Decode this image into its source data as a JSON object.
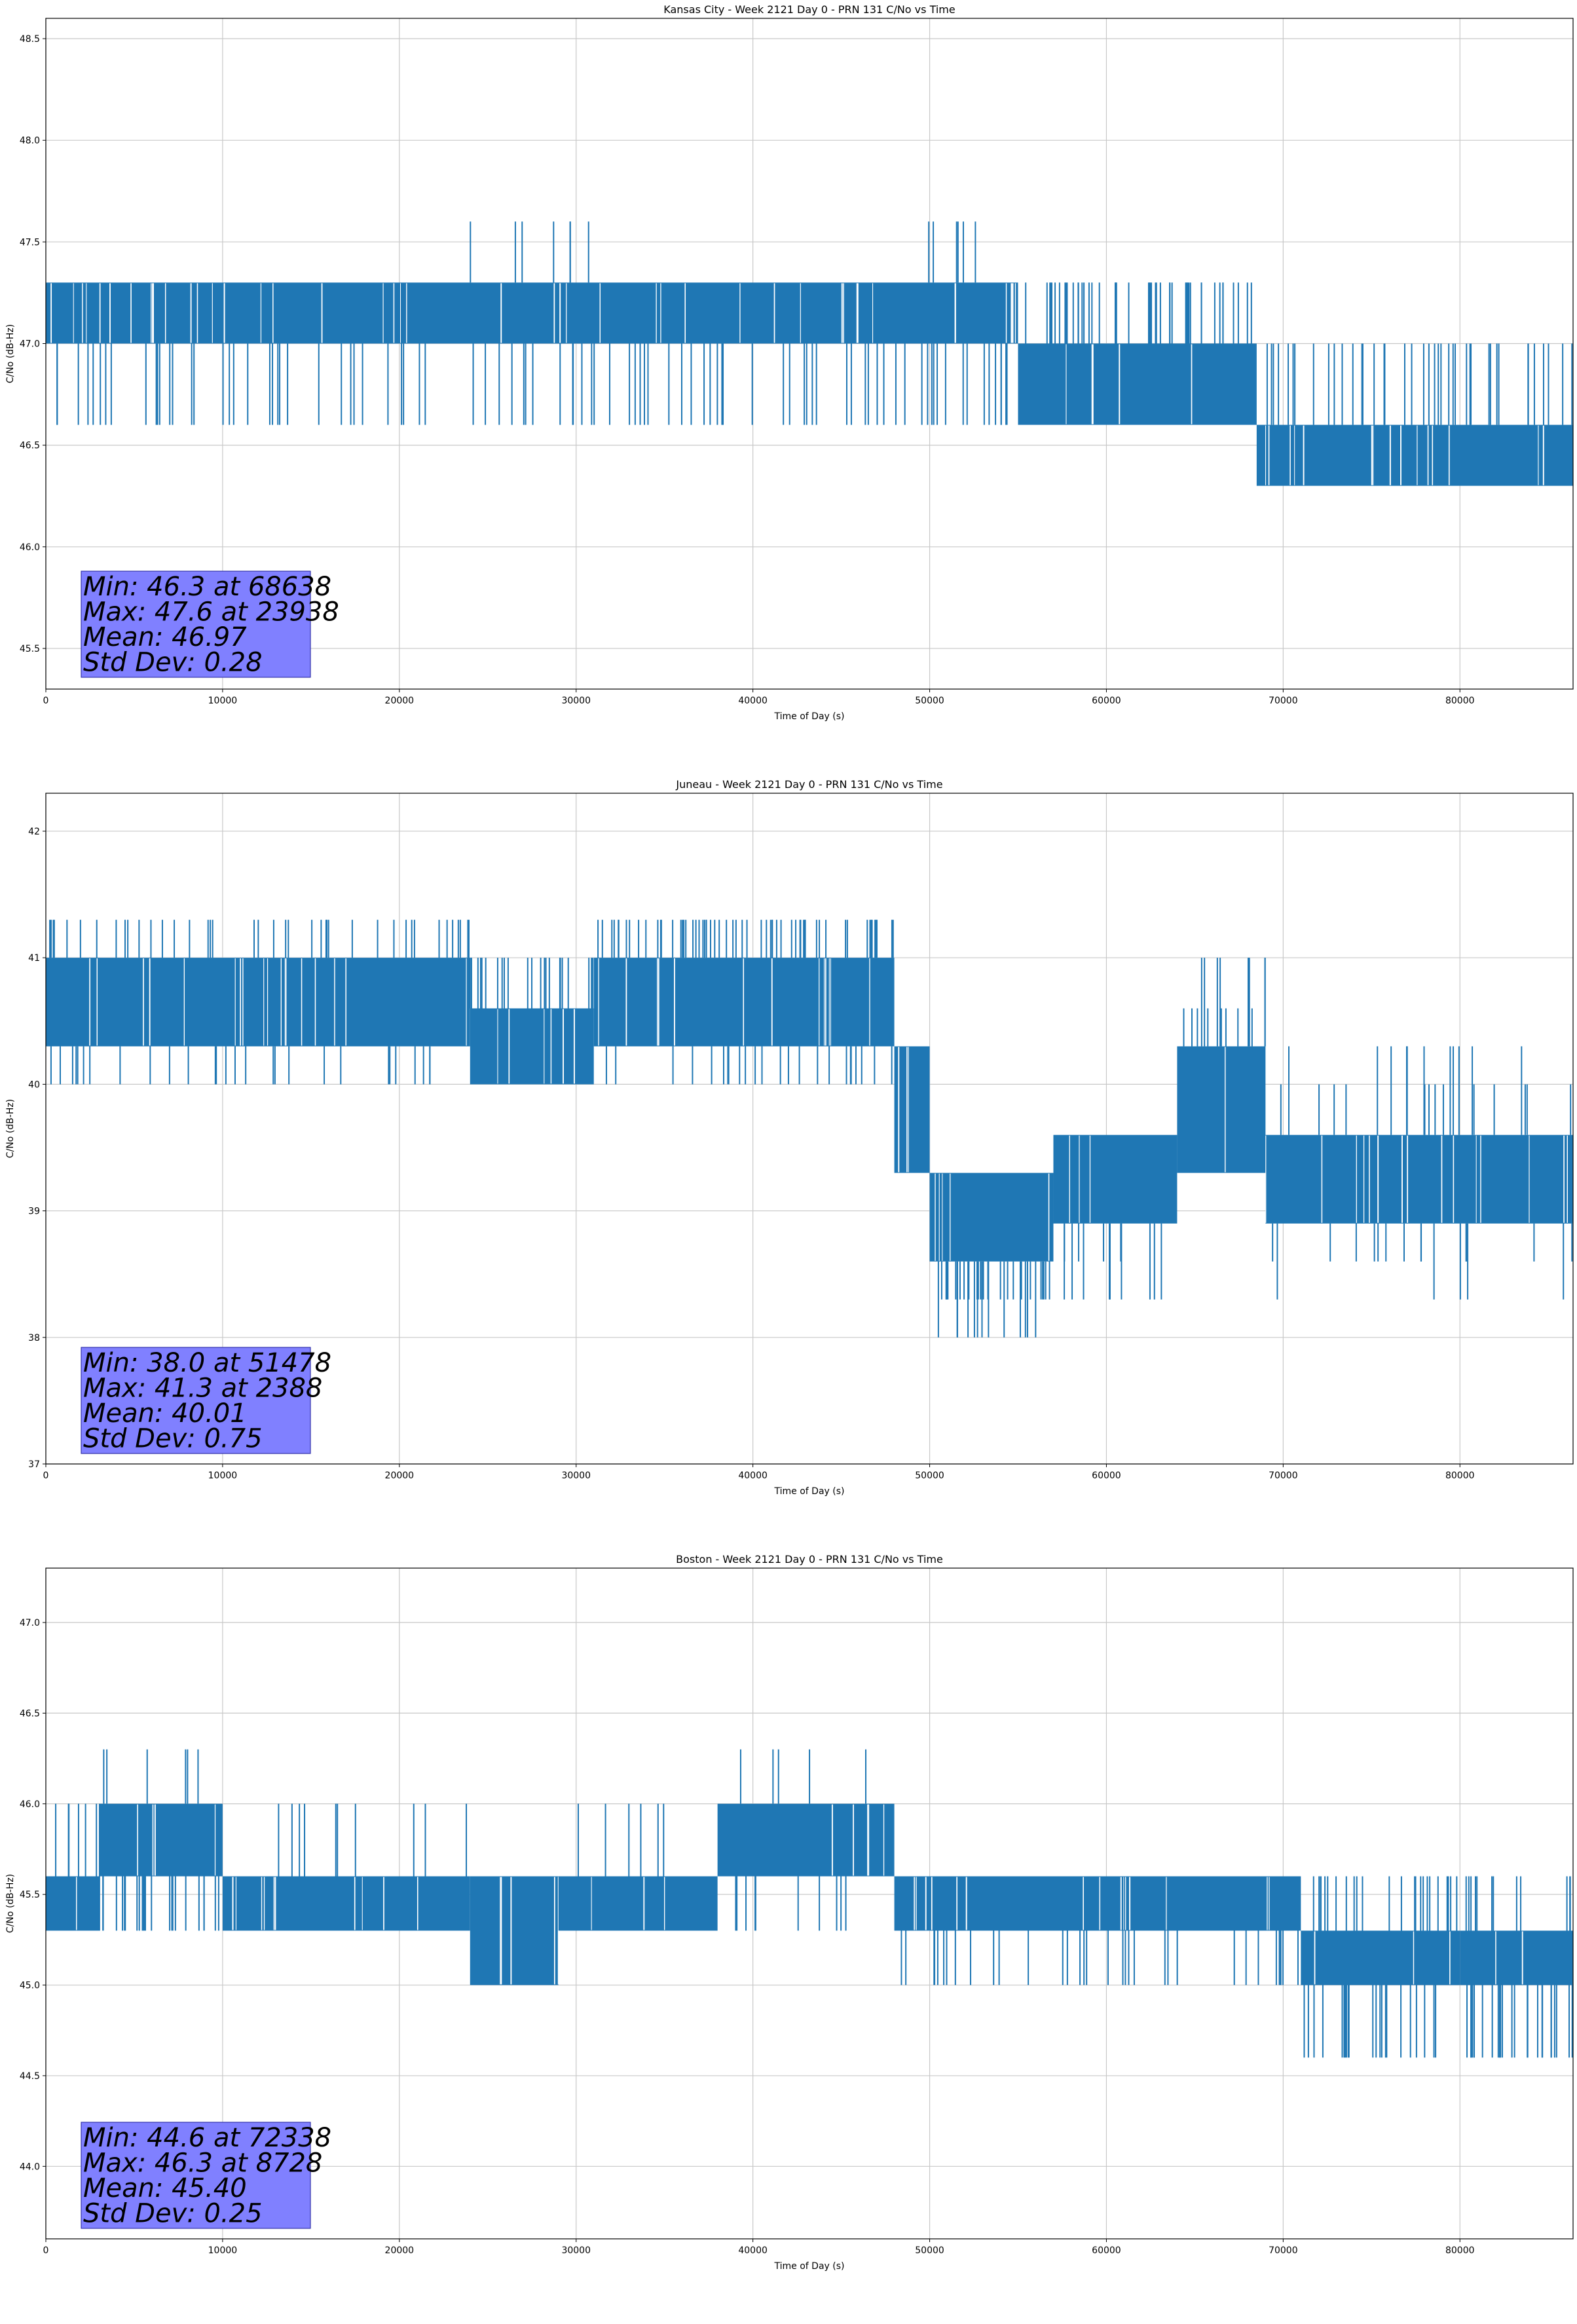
{
  "chart_data": [
    {
      "type": "line",
      "title": "Kansas City - Week 2121 Day 0 - PRN 131 C/No vs Time",
      "xlabel": "Time of Day (s)",
      "ylabel": "C/No (dB-Hz)",
      "xlim": [
        0,
        86400
      ],
      "ylim": [
        45.3,
        48.6
      ],
      "xticks": [
        0,
        10000,
        20000,
        30000,
        40000,
        50000,
        60000,
        70000,
        80000
      ],
      "yticks": [
        45.5,
        46.0,
        46.5,
        47.0,
        47.5,
        48.0,
        48.5
      ],
      "ytick_decimals": 1,
      "grid": true,
      "color": "#1f77b4",
      "stats": [
        "Min: 46.3 at 68638",
        "Max: 47.6 at 23938",
        "Mean: 46.97",
        "Std Dev: 0.28"
      ],
      "segments": [
        {
          "x": [
            0,
            55000
          ],
          "bands": [
            [
              47.0,
              47.3
            ]
          ],
          "spikes_down": [
            46.6,
            46.6,
            46.6,
            46.6,
            46.6,
            46.6,
            46.6,
            46.6,
            46.6
          ],
          "spikes_up": []
        },
        {
          "x": [
            24000,
            24000
          ],
          "bands": [],
          "spikes_up": [
            47.6
          ]
        },
        {
          "x": [
            26500,
            31000
          ],
          "bands": [],
          "spikes_up": [
            47.6,
            47.6,
            47.6,
            47.6,
            47.6,
            47.6
          ]
        },
        {
          "x": [
            48500,
            53500
          ],
          "bands": [],
          "spikes_up": [
            47.6,
            47.6,
            47.6,
            47.6,
            47.6,
            47.6
          ]
        },
        {
          "x": [
            55000,
            68500
          ],
          "bands": [
            [
              46.6,
              47.0
            ]
          ],
          "spikes_up": [
            47.3,
            47.3,
            47.3,
            47.3,
            47.3
          ]
        },
        {
          "x": [
            68500,
            86400
          ],
          "bands": [
            [
              46.3,
              46.6
            ]
          ],
          "spikes_up": [
            47.0,
            47.0,
            47.0,
            47.0,
            47.0,
            47.0
          ]
        }
      ]
    },
    {
      "type": "line",
      "title": "Juneau - Week 2121 Day 0 - PRN 131 C/No vs Time",
      "xlabel": "Time of Day (s)",
      "ylabel": "C/No (dB-Hz)",
      "xlim": [
        0,
        86400
      ],
      "ylim": [
        37.0,
        42.3
      ],
      "xticks": [
        0,
        10000,
        20000,
        30000,
        40000,
        50000,
        60000,
        70000,
        80000
      ],
      "yticks": [
        37,
        38,
        39,
        40,
        41,
        42
      ],
      "ytick_decimals": 0,
      "grid": true,
      "color": "#1f77b4",
      "stats": [
        "Min: 38.0 at 51478",
        "Max: 41.3 at 2388",
        "Mean: 40.01",
        "Std Dev: 0.75"
      ],
      "segments": [
        {
          "x": [
            0,
            24000
          ],
          "bands": [
            [
              40.3,
              41.0
            ]
          ],
          "spikes_up": [
            41.3,
            41.3,
            41.3,
            41.3,
            41.3
          ],
          "spikes_down": [
            40.0,
            40.0,
            40.0
          ]
        },
        {
          "x": [
            24000,
            31000
          ],
          "bands": [
            [
              40.0,
              40.6
            ]
          ],
          "spikes_up": [
            41.0,
            41.0
          ]
        },
        {
          "x": [
            31000,
            48000
          ],
          "bands": [
            [
              40.3,
              41.0
            ]
          ],
          "spikes_up": [
            41.3,
            41.3,
            41.3,
            41.3,
            41.3,
            41.3
          ],
          "spikes_down": [
            40.0,
            40.0
          ]
        },
        {
          "x": [
            48000,
            50000
          ],
          "bands": [
            [
              39.3,
              40.3
            ]
          ],
          "spikes_up": []
        },
        {
          "x": [
            50000,
            57000
          ],
          "bands": [
            [
              38.6,
              39.3
            ]
          ],
          "spikes_down": [
            38.3,
            38.3,
            38.3,
            38.0
          ]
        },
        {
          "x": [
            57000,
            64000
          ],
          "bands": [
            [
              38.9,
              39.6
            ]
          ],
          "spikes_down": [
            38.6,
            38.3
          ]
        },
        {
          "x": [
            64000,
            69000
          ],
          "bands": [
            [
              39.3,
              40.3
            ]
          ],
          "spikes_up": [
            40.6,
            41.0
          ]
        },
        {
          "x": [
            69000,
            86400
          ],
          "bands": [
            [
              38.9,
              39.6
            ]
          ],
          "spikes_up": [
            40.0,
            40.3
          ],
          "spikes_down": [
            38.6,
            38.3
          ]
        }
      ]
    },
    {
      "type": "line",
      "title": "Boston - Week 2121 Day 0 - PRN 131 C/No vs Time",
      "xlabel": "Time of Day (s)",
      "ylabel": "C/No (dB-Hz)",
      "xlim": [
        0,
        86400
      ],
      "ylim": [
        43.6,
        47.3
      ],
      "xticks": [
        0,
        10000,
        20000,
        30000,
        40000,
        50000,
        60000,
        70000,
        80000
      ],
      "yticks": [
        44.0,
        44.5,
        45.0,
        45.5,
        46.0,
        46.5,
        47.0
      ],
      "ytick_decimals": 1,
      "grid": true,
      "color": "#1f77b4",
      "stats": [
        "Min: 44.6 at 72338",
        "Max: 46.3 at 8728",
        "Mean: 45.40",
        "Std Dev: 0.25"
      ],
      "segments": [
        {
          "x": [
            0,
            3000
          ],
          "bands": [
            [
              45.3,
              45.6
            ]
          ],
          "spikes_up": [
            46.0
          ]
        },
        {
          "x": [
            3000,
            10000
          ],
          "bands": [
            [
              45.6,
              46.0
            ]
          ],
          "spikes_up": [
            46.3
          ],
          "spikes_down": [
            45.3,
            45.3
          ]
        },
        {
          "x": [
            10000,
            24000
          ],
          "bands": [
            [
              45.3,
              45.6
            ]
          ],
          "spikes_up": [
            46.0
          ]
        },
        {
          "x": [
            24000,
            29000
          ],
          "bands": [
            [
              45.0,
              45.6
            ]
          ],
          "spikes_up": []
        },
        {
          "x": [
            29000,
            38000
          ],
          "bands": [
            [
              45.3,
              45.6
            ]
          ],
          "spikes_up": [
            46.0
          ]
        },
        {
          "x": [
            38000,
            48000
          ],
          "bands": [
            [
              45.6,
              46.0
            ]
          ],
          "spikes_up": [
            46.3
          ],
          "spikes_down": [
            45.3
          ]
        },
        {
          "x": [
            48000,
            71000
          ],
          "bands": [
            [
              45.3,
              45.6
            ]
          ],
          "spikes_down": [
            45.0,
            45.0,
            45.0,
            45.0
          ]
        },
        {
          "x": [
            71000,
            80000
          ],
          "bands": [
            [
              45.0,
              45.3
            ]
          ],
          "spikes_down": [
            44.6,
            44.6
          ],
          "spikes_up": [
            45.6,
            45.6
          ]
        },
        {
          "x": [
            80000,
            86400
          ],
          "bands": [
            [
              45.0,
              45.3
            ]
          ],
          "spikes_down": [
            44.6,
            44.6,
            44.6
          ],
          "spikes_up": [
            45.6
          ]
        }
      ]
    }
  ]
}
